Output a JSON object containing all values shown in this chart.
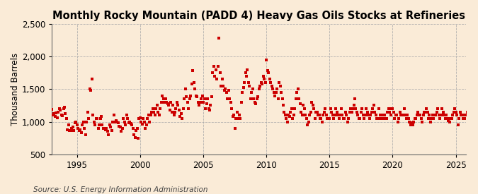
{
  "title": "Monthly Rocky Mountain (PADD 4) Heavy Gas Oils Stocks at Refineries",
  "ylabel": "Thousand Barrels",
  "source": "Source: U.S. Energy Information Administration",
  "background_color": "#faebd7",
  "plot_bg_color": "#faebd7",
  "marker_color": "#cc0000",
  "marker": "s",
  "marker_size": 3.5,
  "xlim": [
    1993.0,
    2025.8
  ],
  "ylim": [
    500,
    2500
  ],
  "yticks": [
    500,
    1000,
    1500,
    2000,
    2500
  ],
  "xticks": [
    1995,
    2000,
    2005,
    2010,
    2015,
    2020,
    2025
  ],
  "grid_color": "#aaaaaa",
  "grid_style": "--",
  "title_fontsize": 10.5,
  "label_fontsize": 8.5,
  "tick_fontsize": 8.5,
  "source_fontsize": 7.5,
  "start_year": 1993,
  "data": [
    1190,
    1100,
    1120,
    1080,
    1140,
    1060,
    1150,
    1200,
    1180,
    1100,
    1090,
    1200,
    1220,
    1120,
    1050,
    880,
    950,
    860,
    870,
    900,
    920,
    860,
    980,
    1000,
    950,
    900,
    870,
    880,
    830,
    950,
    1000,
    900,
    800,
    1000,
    1150,
    1050,
    1500,
    1480,
    1650,
    1100,
    1000,
    950,
    1050,
    1050,
    900,
    950,
    1050,
    1080,
    950,
    900,
    900,
    880,
    900,
    850,
    800,
    950,
    920,
    870,
    1000,
    1100,
    1000,
    1020,
    1000,
    980,
    930,
    920,
    850,
    900,
    1050,
    1000,
    950,
    1100,
    1050,
    980,
    1000,
    970,
    950,
    900,
    800,
    760,
    870,
    900,
    750,
    1050,
    1060,
    1000,
    960,
    1050,
    1000,
    900,
    950,
    1050,
    1100,
    1000,
    1100,
    1150,
    1200,
    1150,
    1100,
    1200,
    1250,
    1150,
    1100,
    1200,
    1300,
    1400,
    1350,
    1300,
    1350,
    1300,
    1280,
    1250,
    1180,
    1300,
    1150,
    1250,
    1100,
    1150,
    1200,
    1300,
    1250,
    1180,
    1080,
    1120,
    1050,
    1200,
    1350,
    1500,
    1380,
    1300,
    1200,
    1350,
    1400,
    1580,
    1780,
    1600,
    1500,
    1400,
    1380,
    1300,
    1250,
    1300,
    1350,
    1400,
    1300,
    1350,
    1200,
    1280,
    1350,
    1200,
    1180,
    1250,
    1380,
    1750,
    1850,
    1700,
    1800,
    1650,
    1850,
    2280,
    1750,
    1550,
    1650,
    1550,
    1480,
    1500,
    1450,
    1350,
    1480,
    1350,
    1300,
    1200,
    1080,
    1100,
    900,
    1050,
    1150,
    1050,
    1100,
    1050,
    1300,
    1450,
    1520,
    1600,
    1750,
    1700,
    1800,
    1600,
    1550,
    1350,
    1450,
    1500,
    1350,
    1300,
    1280,
    1350,
    1380,
    1500,
    1550,
    1600,
    1580,
    1700,
    1650,
    1600,
    1950,
    1780,
    1750,
    1650,
    1600,
    1550,
    1500,
    1450,
    1400,
    1450,
    1500,
    1350,
    1600,
    1550,
    1450,
    1350,
    1250,
    1150,
    1100,
    1050,
    1000,
    1100,
    1080,
    1150,
    1200,
    1050,
    1100,
    1200,
    1350,
    1450,
    1500,
    1350,
    1280,
    1150,
    1100,
    1250,
    1200,
    1100,
    1050,
    950,
    1000,
    1100,
    1150,
    1300,
    1250,
    1200,
    1050,
    1150,
    1150,
    1100,
    1100,
    1050,
    1050,
    1000,
    1100,
    1150,
    1200,
    1100,
    1050,
    1050,
    1050,
    1200,
    1150,
    1100,
    1050,
    1100,
    1200,
    1150,
    1100,
    1050,
    1100,
    1200,
    1100,
    1050,
    1050,
    1150,
    1100,
    1000,
    1050,
    1150,
    1200,
    1150,
    1200,
    1250,
    1350,
    1200,
    1150,
    1100,
    1050,
    1050,
    1150,
    1200,
    1100,
    1050,
    1100,
    1200,
    1150,
    1100,
    1050,
    1100,
    1150,
    1200,
    1250,
    1150,
    1100,
    1050,
    1050,
    1200,
    1100,
    1050,
    1050,
    1100,
    1100,
    1050,
    1050,
    1150,
    1200,
    1150,
    1100,
    1200,
    1200,
    1150,
    1050,
    1100,
    1100,
    1000,
    1050,
    1150,
    1100,
    1100,
    1100,
    1200,
    1100,
    1050,
    1100,
    1050,
    1000,
    950,
    980,
    950,
    1000,
    1050,
    1050,
    1100,
    1150,
    1100,
    1100,
    1050,
    1000,
    1100,
    1150,
    1150,
    1200,
    1150,
    1050,
    1100,
    1000,
    1050,
    1100,
    1050,
    1100,
    1100,
    1150,
    1200,
    1100,
    1050,
    1100,
    1200,
    1150,
    1100,
    1050,
    1100,
    1050,
    1020,
    1000,
    1050,
    1050,
    1100,
    1150,
    1200,
    1150,
    1100,
    950,
    1050,
    1150,
    1100,
    1100,
    1050,
    1050,
    1100,
    1100,
    1150,
    1150,
    1100
  ]
}
